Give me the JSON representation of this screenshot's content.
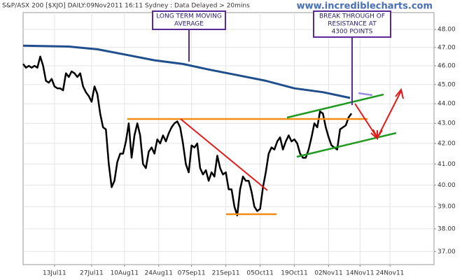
{
  "chart_data": {
    "type": "line",
    "title": "S&P/ASX 200 [$XJO] DAILY:09Nov2011 16:11 Sydney : Data Delayed > 20mins",
    "watermark": "www.incrediblecharts.com",
    "yscale": "log",
    "grid": true,
    "ylim": [
      36.44,
      48.96
    ],
    "yticks": [
      {
        "value": 37,
        "label": "37.00"
      },
      {
        "value": 38,
        "label": "38.00"
      },
      {
        "value": 39,
        "label": "39.00"
      },
      {
        "value": 40,
        "label": "40.00"
      },
      {
        "value": 41,
        "label": "41.00"
      },
      {
        "value": 42,
        "label": "42.00"
      },
      {
        "value": 43,
        "label": "43.00"
      },
      {
        "value": 44,
        "label": "44.00"
      },
      {
        "value": 45,
        "label": "45.00"
      },
      {
        "value": 46,
        "label": "46.00"
      },
      {
        "value": 47,
        "label": "47.00"
      },
      {
        "value": 48,
        "label": "48.00"
      }
    ],
    "xlim": [
      0,
      143.9
    ],
    "xticks": [
      {
        "value": 11,
        "label": "13Jul11"
      },
      {
        "value": 24,
        "label": "27Jul11"
      },
      {
        "value": 35.5,
        "label": "10Aug11"
      },
      {
        "value": 47.5,
        "label": "24Aug11"
      },
      {
        "value": 59,
        "label": "07Sep11"
      },
      {
        "value": 71,
        "label": "21Sep11"
      },
      {
        "value": 83,
        "label": "05Oct11"
      },
      {
        "value": 95,
        "label": "19Oct11"
      },
      {
        "value": 107,
        "label": "02Nov11"
      },
      {
        "value": 118,
        "label": "14Nov11"
      },
      {
        "value": 128.5,
        "label": "24Nov11"
      }
    ],
    "series": [
      {
        "name": "S&P/ASX 200",
        "color": "#000000",
        "x": [
          0,
          1,
          2,
          3,
          4,
          5,
          6,
          7,
          8,
          9,
          10,
          11,
          12,
          13,
          14,
          15,
          16,
          17,
          18,
          19,
          20,
          21,
          22,
          23,
          24,
          25,
          26,
          27,
          28,
          29,
          30,
          31,
          32,
          33,
          34,
          35,
          36,
          37,
          38,
          39,
          40,
          41,
          42,
          43,
          44,
          45,
          46,
          47,
          48,
          49,
          50,
          51,
          52,
          53,
          54,
          55,
          56,
          57,
          58,
          59,
          60,
          61,
          62,
          63,
          64,
          65,
          66,
          67,
          68,
          69,
          70,
          71,
          72,
          73,
          74,
          75,
          76,
          77,
          78,
          79,
          80,
          81,
          82,
          83,
          84,
          85,
          86,
          87,
          88,
          89,
          90,
          91,
          92,
          93,
          94,
          95,
          96,
          97,
          98,
          99,
          100,
          101,
          102,
          103,
          104,
          105,
          106,
          107,
          108,
          109,
          110,
          111,
          112,
          113,
          114,
          115
        ],
        "values": [
          46.1,
          45.9,
          46.0,
          45.9,
          46.0,
          45.9,
          46.5,
          46.0,
          45.2,
          45.1,
          45.3,
          44.9,
          44.8,
          44.8,
          44.7,
          45.6,
          45.4,
          45.7,
          45.6,
          45.4,
          45.6,
          44.9,
          44.6,
          44.4,
          44.1,
          44.9,
          44.5,
          43.5,
          42.8,
          42.7,
          41.0,
          39.9,
          40.2,
          41.1,
          41.5,
          41.5,
          42.1,
          43.0,
          41.3,
          42.4,
          43.0,
          42.4,
          41.0,
          40.8,
          41.6,
          41.8,
          41.5,
          42.2,
          42.0,
          42.4,
          42.1,
          42.5,
          42.8,
          43.0,
          43.1,
          42.8,
          42.0,
          41.0,
          40.6,
          41.9,
          41.8,
          42.0,
          40.8,
          40.5,
          40.7,
          40.2,
          40.6,
          40.4,
          41.4,
          40.8,
          40.5,
          40.6,
          39.8,
          39.8,
          39.0,
          38.6,
          39.8,
          40.4,
          40.2,
          40.2,
          39.7,
          39.0,
          38.8,
          38.9,
          39.9,
          40.6,
          41.5,
          41.8,
          41.7,
          42.1,
          42.3,
          41.7,
          42.1,
          42.4,
          42.1,
          42.2,
          42.0,
          41.5,
          41.3,
          41.3,
          41.7,
          42.3,
          43.0,
          42.8,
          43.6,
          43.5,
          42.8,
          42.3,
          41.9,
          41.8,
          41.7,
          42.7,
          42.8,
          42.9,
          43.3,
          43.5
        ]
      },
      {
        "name": "LONG TERM MOVING AVERAGE",
        "color": "#1f4e8c",
        "x": [
          0,
          16,
          26,
          36,
          46,
          56,
          65,
          75,
          85,
          95,
          105,
          114.5
        ],
        "values": [
          47.1,
          47.05,
          46.9,
          46.6,
          46.3,
          46.1,
          45.8,
          45.5,
          45.2,
          44.8,
          44.6,
          44.3
        ]
      }
    ],
    "annotations": [
      {
        "lines": [
          "LONG TERM MOVING",
          "AVERAGE"
        ]
      },
      {
        "lines": [
          "BREAK THROUGH OF",
          "RESISTANCE AT",
          "4300 POINTS"
        ]
      }
    ]
  }
}
